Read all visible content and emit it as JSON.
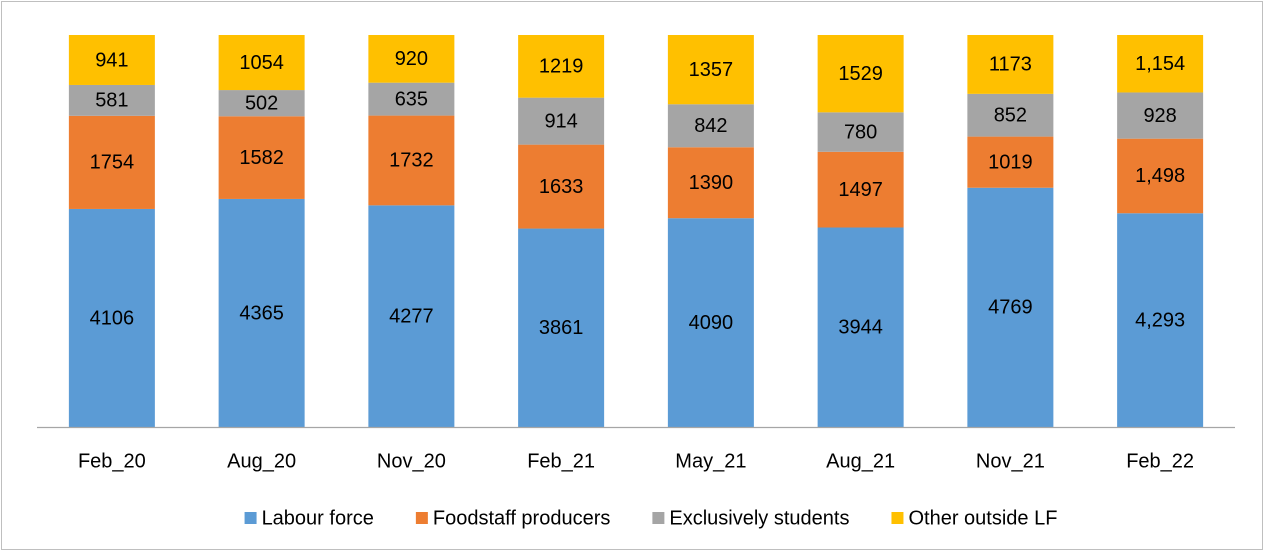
{
  "chart_data": {
    "type": "bar",
    "stacking": "percent",
    "legend": "bottom",
    "categories": [
      "Feb_20",
      "Aug_20",
      "Nov_20",
      "Feb_21",
      "May_21",
      "Aug_21",
      "Nov_21",
      "Feb_22"
    ],
    "series": [
      {
        "name": "Labour force",
        "color": "#5b9bd5",
        "values": [
          4106,
          4365,
          4277,
          3861,
          4090,
          3944,
          4769,
          4293
        ],
        "value_labels": [
          "4106",
          "4365",
          "4277",
          "3861",
          "4090",
          "3944",
          "4769",
          "4,293"
        ]
      },
      {
        "name": "Foodstaff producers",
        "color": "#ed7d31",
        "values": [
          1754,
          1582,
          1732,
          1633,
          1390,
          1497,
          1019,
          1498
        ],
        "value_labels": [
          "1754",
          "1582",
          "1732",
          "1633",
          "1390",
          "1497",
          "1019",
          "1,498"
        ]
      },
      {
        "name": "Exclusively students",
        "color": "#a5a5a5",
        "values": [
          581,
          502,
          635,
          914,
          842,
          780,
          852,
          928
        ],
        "value_labels": [
          "581",
          "502",
          "635",
          "914",
          "842",
          "780",
          "852",
          "928"
        ]
      },
      {
        "name": "Other outside LF",
        "color": "#ffc000",
        "values": [
          941,
          1054,
          920,
          1219,
          1357,
          1529,
          1173,
          1154
        ],
        "value_labels": [
          "941",
          "1054",
          "920",
          "1219",
          "1357",
          "1529",
          "1173",
          "1,154"
        ]
      }
    ]
  }
}
